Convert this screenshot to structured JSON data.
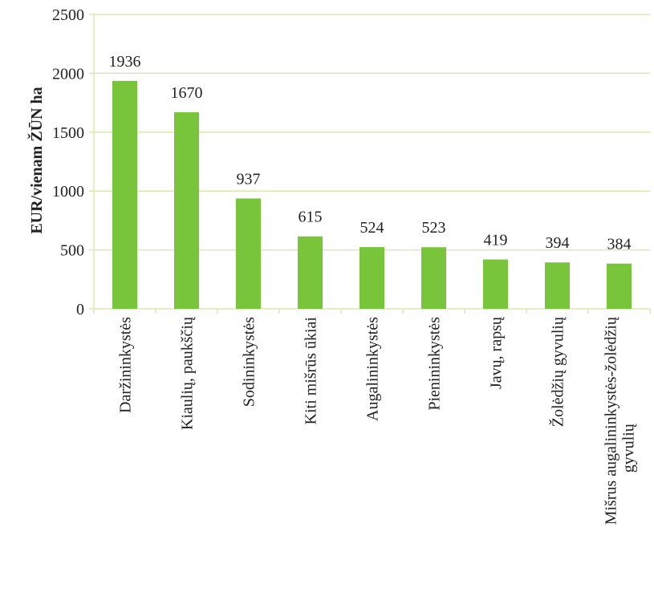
{
  "chart_data": {
    "type": "bar",
    "y_label": "EUR/vienam ŽŪN ha",
    "categories": [
      "Daržininkystės",
      "Kiaulių, paukščių",
      "Sodininkystės",
      "Kiti mišrūs ūkiai",
      "Augalininkystės",
      "Pienininkystės",
      "Javų, rapsų",
      "Žolėdžių gyvulių",
      "Mišrus augalininkystės-žolėdžių gyvulių"
    ],
    "values": [
      1936,
      1670,
      937,
      615,
      524,
      523,
      419,
      394,
      384
    ],
    "color": "#78c43a",
    "ylim": [
      0,
      2500
    ],
    "yticks": [
      0,
      500,
      1000,
      1500,
      2000,
      2500
    ],
    "grid": true
  }
}
